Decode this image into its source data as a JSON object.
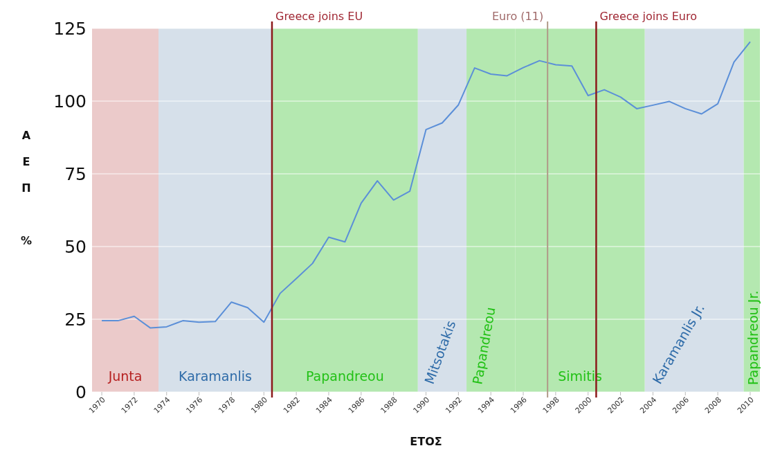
{
  "chart_data": {
    "type": "line",
    "xlabel": "ΕΤΟΣ",
    "ylabel": "ΑΕΠ %",
    "x": [
      1970,
      1971,
      1972,
      1973,
      1974,
      1975,
      1976,
      1977,
      1978,
      1979,
      1980,
      1981,
      1982,
      1983,
      1984,
      1985,
      1986,
      1987,
      1988,
      1989,
      1990,
      1991,
      1992,
      1993,
      1994,
      1995,
      1996,
      1997,
      1998,
      1999,
      2000,
      2001,
      2002,
      2003,
      2004,
      2005,
      2006,
      2007,
      2008,
      2009,
      2010
    ],
    "series": [
      {
        "color": "#5b8fd8",
        "values": [
          24.5,
          24.5,
          26.0,
          22.0,
          22.4,
          24.5,
          24.0,
          24.2,
          30.9,
          29.0,
          24.0,
          33.9,
          39.0,
          44.2,
          53.2,
          51.6,
          64.9,
          72.6,
          66.0,
          69.0,
          90.2,
          92.5,
          98.7,
          111.4,
          109.3,
          108.7,
          111.5,
          113.9,
          112.5,
          112.1,
          101.9,
          103.9,
          101.4,
          97.4,
          98.6,
          99.9,
          97.4,
          95.6,
          99.1,
          113.4,
          120.4
        ]
      }
    ],
    "xlim": [
      1969.4,
      2010.6
    ],
    "xticks": [
      1970,
      1972,
      1974,
      1976,
      1978,
      1980,
      1982,
      1984,
      1986,
      1988,
      1990,
      1992,
      1994,
      1996,
      1998,
      2000,
      2002,
      2004,
      2006,
      2008,
      2010
    ],
    "ylim": [
      0,
      125
    ],
    "yticks": [
      0,
      25,
      50,
      75,
      100,
      125
    ],
    "grid": "y",
    "marker": "none",
    "line_style": "solid",
    "bands": [
      {
        "axis": "x",
        "from": 1969.4,
        "to": 1973.5,
        "label": "Junta",
        "color": "#ebcaca"
      },
      {
        "axis": "x",
        "from": 1973.5,
        "to": 1980.5,
        "label": "Karamanlis",
        "color": "#d6e0ea"
      },
      {
        "axis": "x",
        "from": 1980.5,
        "to": 1989.5,
        "label": "Papandreou",
        "color": "#b4e8b0"
      },
      {
        "axis": "x",
        "from": 1989.5,
        "to": 1992.5,
        "label": "Mitsotakis",
        "color": "#d6e0ea"
      },
      {
        "axis": "x",
        "from": 1992.5,
        "to": 1995.5,
        "label": "Papandreou",
        "color": "#b4e8b0"
      },
      {
        "axis": "x",
        "from": 1995.5,
        "to": 2003.5,
        "label": "Simitis",
        "color": "#b4e8b0"
      },
      {
        "axis": "x",
        "from": 2003.5,
        "to": 2009.6,
        "label": "Karamanlis Jr.",
        "color": "#d6e0ea"
      },
      {
        "axis": "x",
        "from": 2009.6,
        "to": 2010.6,
        "label": "Papandreou Jr.",
        "color": "#b4e8b0"
      }
    ],
    "ref_lines": [
      {
        "axis": "x",
        "value": 1980.5,
        "label": "Greece joins EU",
        "color": "#8b1a1a"
      },
      {
        "axis": "x",
        "value": 1997.5,
        "label": "Euro (11)",
        "color": "#b09a88"
      },
      {
        "axis": "x",
        "value": 2000.5,
        "label": "Greece joins Euro",
        "color": "#8b1a1a"
      }
    ]
  }
}
